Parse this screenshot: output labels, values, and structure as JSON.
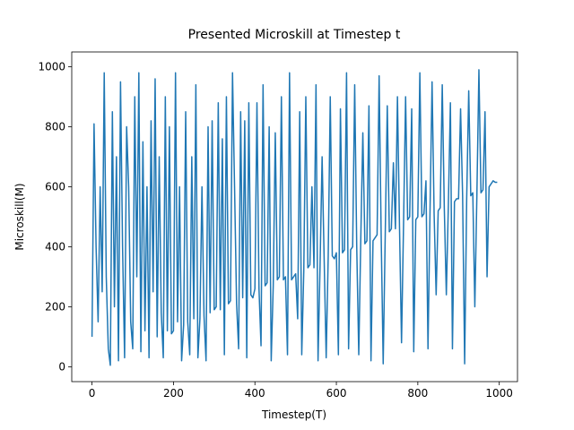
{
  "chart_data": {
    "type": "line",
    "title": "Presented Microskill at Timestep t",
    "x_label": "Timestep(T)",
    "y_label": "Microskill(M)",
    "x": [
      0,
      5,
      10,
      15,
      20,
      25,
      30,
      35,
      40,
      45,
      50,
      55,
      60,
      65,
      70,
      75,
      80,
      85,
      90,
      95,
      100,
      105,
      110,
      115,
      120,
      125,
      130,
      135,
      140,
      145,
      150,
      155,
      160,
      165,
      170,
      175,
      180,
      185,
      190,
      195,
      200,
      205,
      210,
      215,
      220,
      225,
      230,
      235,
      240,
      245,
      250,
      255,
      260,
      265,
      270,
      275,
      280,
      285,
      290,
      295,
      300,
      305,
      310,
      315,
      320,
      325,
      330,
      335,
      340,
      345,
      350,
      355,
      360,
      365,
      370,
      375,
      380,
      385,
      390,
      395,
      400,
      405,
      410,
      415,
      420,
      425,
      430,
      435,
      440,
      445,
      450,
      455,
      460,
      465,
      470,
      475,
      480,
      485,
      490,
      495,
      500,
      505,
      510,
      515,
      520,
      525,
      530,
      535,
      540,
      545,
      550,
      555,
      560,
      565,
      570,
      575,
      580,
      585,
      590,
      595,
      600,
      605,
      610,
      615,
      620,
      625,
      630,
      635,
      640,
      645,
      650,
      655,
      660,
      665,
      670,
      675,
      680,
      685,
      690,
      695,
      700,
      705,
      710,
      715,
      720,
      725,
      730,
      735,
      740,
      745,
      750,
      755,
      760,
      765,
      770,
      775,
      780,
      785,
      790,
      795,
      800,
      805,
      810,
      815,
      820,
      825,
      830,
      835,
      840,
      845,
      850,
      855,
      860,
      865,
      870,
      875,
      880,
      885,
      890,
      895,
      900,
      905,
      910,
      915,
      920,
      925,
      930,
      935,
      940,
      945,
      950,
      955,
      960,
      965,
      970,
      975,
      980,
      985,
      990,
      995
    ],
    "series": [
      {
        "name": "Microskill",
        "color": "#1f77b4",
        "values": [
          100,
          810,
          400,
          150,
          600,
          250,
          980,
          300,
          60,
          5,
          850,
          200,
          700,
          20,
          950,
          400,
          30,
          800,
          600,
          150,
          60,
          900,
          300,
          980,
          50,
          750,
          120,
          600,
          30,
          820,
          250,
          960,
          100,
          700,
          180,
          30,
          900,
          120,
          800,
          110,
          120,
          980,
          150,
          600,
          20,
          140,
          850,
          150,
          40,
          700,
          160,
          940,
          30,
          160,
          600,
          170,
          20,
          800,
          180,
          820,
          190,
          200,
          880,
          190,
          760,
          40,
          900,
          210,
          220,
          980,
          600,
          210,
          60,
          850,
          230,
          820,
          30,
          880,
          240,
          230,
          260,
          880,
          260,
          70,
          940,
          270,
          280,
          800,
          20,
          270,
          780,
          290,
          300,
          900,
          290,
          300,
          40,
          980,
          290,
          300,
          310,
          160,
          850,
          40,
          320,
          900,
          330,
          340,
          600,
          330,
          940,
          20,
          340,
          700,
          360,
          30,
          370,
          900,
          370,
          360,
          380,
          40,
          860,
          380,
          390,
          980,
          60,
          390,
          400,
          940,
          400,
          40,
          430,
          780,
          410,
          420,
          870,
          20,
          420,
          430,
          440,
          970,
          440,
          10,
          440,
          870,
          450,
          460,
          680,
          460,
          900,
          470,
          80,
          480,
          900,
          490,
          500,
          860,
          50,
          490,
          500,
          980,
          500,
          510,
          620,
          60,
          520,
          950,
          510,
          240,
          520,
          530,
          940,
          530,
          240,
          540,
          880,
          60,
          550,
          560,
          560,
          860,
          570,
          10,
          560,
          920,
          570,
          580,
          200,
          570,
          990,
          580,
          590,
          850,
          300,
          600,
          610,
          620,
          615,
          615
        ]
      }
    ],
    "xlim": [
      -49.75,
      1044.75
    ],
    "ylim": [
      -49.5,
      1049.5
    ],
    "xticks": [
      0,
      200,
      400,
      600,
      800,
      1000
    ],
    "yticks": [
      0,
      200,
      400,
      600,
      800,
      1000
    ],
    "grid": false
  }
}
